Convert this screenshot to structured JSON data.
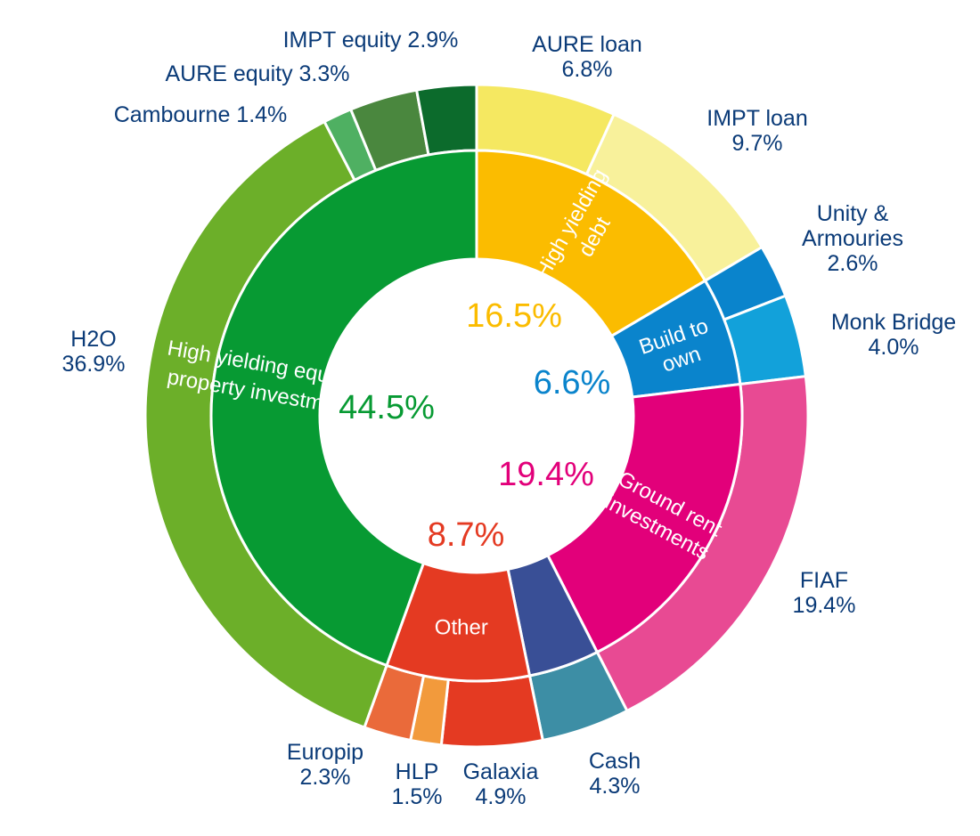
{
  "chart_data": {
    "type": "pie",
    "inner": [
      {
        "name": "High yielding debt",
        "value": 16.5,
        "color": "#fbbc00",
        "label_lines": [
          "High yielding",
          "debt"
        ]
      },
      {
        "name": "Build to own",
        "value": 6.6,
        "color": "#0a84cc",
        "label_lines": [
          "Build to",
          "own"
        ]
      },
      {
        "name": "Ground rent investments",
        "value": 19.4,
        "color": "#e2007a",
        "label_lines": [
          "Ground rent",
          "investments"
        ]
      },
      {
        "name": "Cash",
        "value": 4.3,
        "color": "#394f96",
        "label_lines": []
      },
      {
        "name": "Other",
        "value": 8.7,
        "color": "#e43a22",
        "label_lines": [
          "Other"
        ]
      },
      {
        "name": "High yielding equity in property investments",
        "value": 44.5,
        "color": "#079a33",
        "label_lines": [
          "High yielding equity in",
          "property investments"
        ]
      }
    ],
    "outer": [
      {
        "name": "AURE loan",
        "value": 6.8,
        "color": "#f5e861"
      },
      {
        "name": "IMPT loan",
        "value": 9.7,
        "color": "#f8f19b"
      },
      {
        "name": "Unity & Armouries",
        "value": 2.6,
        "color": "#0a84cc"
      },
      {
        "name": "Monk Bridge",
        "value": 4.0,
        "color": "#12a1da"
      },
      {
        "name": "FIAF",
        "value": 19.4,
        "color": "#e84a93"
      },
      {
        "name": "Cash",
        "value": 4.3,
        "color": "#3d8ea5"
      },
      {
        "name": "Galaxia",
        "value": 4.9,
        "color": "#e43a22"
      },
      {
        "name": "HLP",
        "value": 1.5,
        "color": "#f29a3c"
      },
      {
        "name": "Europip",
        "value": 2.3,
        "color": "#ea6a3a"
      },
      {
        "name": "H2O",
        "value": 36.9,
        "color": "#6caf29"
      },
      {
        "name": "Cambourne",
        "value": 1.4,
        "color": "#4fb062"
      },
      {
        "name": "AURE equity",
        "value": 3.3,
        "color": "#4a873e"
      },
      {
        "name": "IMPT equity",
        "value": 2.9,
        "color": "#0c6b2c"
      }
    ],
    "inner_percent_labels": [
      {
        "text": "16.5%",
        "color": "#fbbc00"
      },
      {
        "text": "6.6%",
        "color": "#0a84cc"
      },
      {
        "text": "19.4%",
        "color": "#e2007a"
      },
      {
        "text": "8.7%",
        "color": "#e43a22"
      },
      {
        "text": "44.5%",
        "color": "#079a33"
      }
    ],
    "outer_labels": [
      {
        "lines": [
          "IMPT equity 2.9%"
        ]
      },
      {
        "lines": [
          "AURE equity 3.3%"
        ]
      },
      {
        "lines": [
          "Cambourne 1.4%"
        ]
      },
      {
        "lines": [
          "AURE loan",
          "6.8%"
        ]
      },
      {
        "lines": [
          "IMPT loan",
          "9.7%"
        ]
      },
      {
        "lines": [
          "Unity &",
          "Armouries",
          "2.6%"
        ]
      },
      {
        "lines": [
          "Monk Bridge",
          "4.0%"
        ]
      },
      {
        "lines": [
          "H2O",
          "36.9%"
        ]
      },
      {
        "lines": [
          "FIAF",
          "19.4%"
        ]
      },
      {
        "lines": [
          "Europip",
          "2.3%"
        ]
      },
      {
        "lines": [
          "HLP",
          "1.5%"
        ]
      },
      {
        "lines": [
          "Galaxia",
          "4.9%"
        ]
      },
      {
        "lines": [
          "Cash",
          "4.3%"
        ]
      }
    ]
  }
}
